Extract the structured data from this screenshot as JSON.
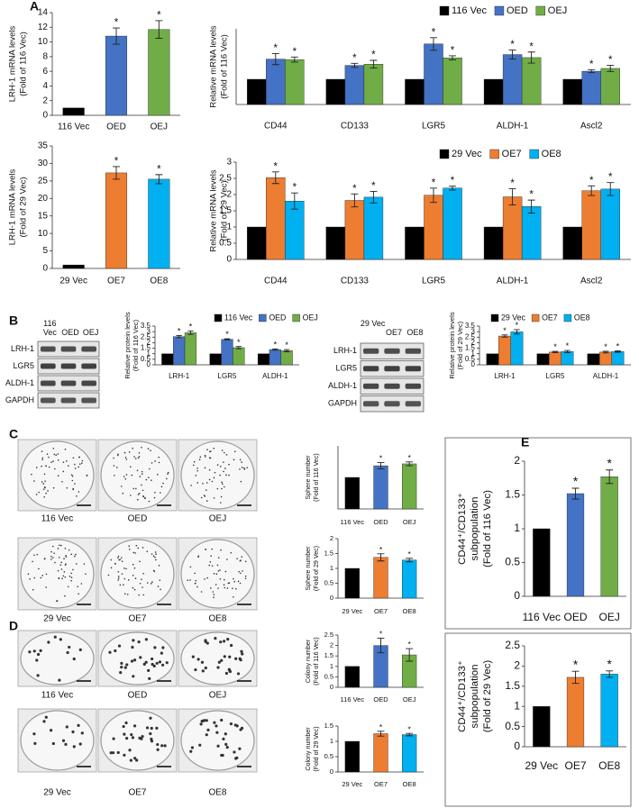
{
  "panels": [
    "A",
    "B",
    "C",
    "D",
    "E"
  ],
  "blots": [
    {
      "lanes": [
        "116 Vec",
        "OED",
        "OEJ"
      ],
      "proteins": [
        "LRH-1",
        "LGR5",
        "ALDH-1",
        "GAPDH"
      ]
    },
    {
      "lanes": [
        "29 Vec",
        "OE7",
        "OE8"
      ],
      "proteins": [
        "LRH-1",
        "LGR5",
        "ALDH-1",
        "GAPDH"
      ]
    }
  ],
  "images": {
    "C": [
      [
        "116 Vec",
        "OED",
        "OEJ"
      ],
      [
        "29 Vec",
        "OE7",
        "OE8"
      ]
    ],
    "D": [
      [
        "116 Vec",
        "OED",
        "OEJ"
      ],
      [
        "29 Vec",
        "OE7",
        "OE8"
      ]
    ]
  },
  "chart_data": [
    {
      "type": "bar",
      "ylabel": [
        "LRH-1 mRNA levels",
        "(Fold of 116 Vec)"
      ],
      "categories": [
        "116 Vec",
        "OED",
        "OEJ"
      ],
      "values": [
        1,
        10.8,
        11.7
      ],
      "errors": [
        null,
        1.1,
        1.2
      ],
      "value_marks": [
        null,
        "*",
        "*"
      ],
      "colors": [
        "#000000",
        "#4472c4",
        "#70ad47"
      ],
      "ylim": [
        0,
        14
      ],
      "yticks": [
        0,
        2,
        4,
        6,
        8,
        10,
        12,
        14
      ]
    },
    {
      "type": "bar",
      "ylabel": [
        "Relative mRNA levels",
        "(Fold of 116 Vec)"
      ],
      "categories": [
        "CD44",
        "CD133",
        "LGR5",
        "ALDH-1",
        "Ascl2"
      ],
      "legend": "top",
      "series": [
        {
          "name": "116 Vec",
          "color": "#000000",
          "values": [
            1,
            1,
            1,
            1,
            1
          ]
        },
        {
          "name": "OED",
          "color": "#4472c4",
          "values": [
            1.8,
            1.55,
            2.4,
            1.98,
            1.32
          ],
          "errors": [
            0.22,
            0.08,
            0.25,
            0.18,
            0.06
          ],
          "value_marks": [
            "*",
            "*",
            "*",
            "*",
            "*"
          ]
        },
        {
          "name": "OEJ",
          "color": "#70ad47",
          "values": [
            1.78,
            1.6,
            1.85,
            1.86,
            1.43
          ],
          "errors": [
            0.1,
            0.15,
            0.08,
            0.22,
            0.12
          ],
          "value_marks": [
            "*",
            "*",
            "*",
            "*",
            "*"
          ]
        }
      ],
      "ylim": [
        0,
        3
      ]
    },
    {
      "type": "bar",
      "ylabel": [
        "LRH-1 mRNA levels",
        "(Fold of 29 Vec)"
      ],
      "categories": [
        "29 Vec",
        "OE7",
        "OE8"
      ],
      "values": [
        1,
        27.3,
        25.5
      ],
      "errors": [
        null,
        1.8,
        1.3
      ],
      "value_marks": [
        null,
        "*",
        "*"
      ],
      "colors": [
        "#000000",
        "#ed7d31",
        "#00b0f0"
      ],
      "ylim": [
        0,
        35
      ],
      "yticks": [
        0,
        5,
        10,
        15,
        20,
        25,
        30,
        35
      ]
    },
    {
      "type": "bar",
      "ylabel": [
        "Relative mRNA levels",
        "(Fold of 29 Vec)"
      ],
      "categories": [
        "CD44",
        "CD133",
        "LGR5",
        "ALDH-1",
        "Ascl2"
      ],
      "legend": "top",
      "series": [
        {
          "name": "29 Vec",
          "color": "#000000",
          "values": [
            1,
            1,
            1,
            1,
            1
          ]
        },
        {
          "name": "OE7",
          "color": "#ed7d31",
          "values": [
            2.52,
            1.82,
            1.98,
            1.93,
            2.12
          ],
          "errors": [
            0.18,
            0.2,
            0.22,
            0.25,
            0.15
          ],
          "value_marks": [
            "*",
            "*",
            "*",
            "*",
            "*"
          ]
        },
        {
          "name": "OE8",
          "color": "#00b0f0",
          "values": [
            1.8,
            1.92,
            2.2,
            1.63,
            2.17
          ],
          "errors": [
            0.25,
            0.18,
            0.06,
            0.2,
            0.2
          ],
          "value_marks": [
            "*",
            "*",
            "*",
            "*",
            "*"
          ]
        }
      ],
      "ylim": [
        0,
        3
      ],
      "yticks": [
        0,
        0.5,
        1,
        1.5,
        2,
        2.5,
        3
      ]
    },
    {
      "type": "bar",
      "ylabel": [
        "Relative protein levels",
        "(Fold of 116 Vec)"
      ],
      "categories": [
        "LRH-1",
        "LGR5",
        "ALDH-1"
      ],
      "legend": "top",
      "series": [
        {
          "name": "116 Vec",
          "color": "#000000",
          "values": [
            1,
            1,
            1
          ]
        },
        {
          "name": "OED",
          "color": "#4472c4",
          "values": [
            2.55,
            2.3,
            1.38
          ],
          "errors": [
            0.1,
            0.05,
            0.06
          ],
          "value_marks": [
            "*",
            "*",
            "*"
          ]
        },
        {
          "name": "OEJ",
          "color": "#70ad47",
          "values": [
            2.9,
            1.55,
            1.28
          ],
          "errors": [
            0.15,
            0.1,
            0.1
          ],
          "value_marks": [
            "*",
            "*",
            "*"
          ]
        }
      ],
      "ylim": [
        0,
        3.5
      ],
      "yticks": [
        0,
        0.5,
        1,
        1.5,
        2,
        2.5,
        3,
        3.5
      ]
    },
    {
      "type": "bar",
      "ylabel": [
        "Relative protein levels",
        "(Fold of 29 Vec)"
      ],
      "categories": [
        "LRH-1",
        "LGR5",
        "ALDH-1"
      ],
      "legend": "top",
      "series": [
        {
          "name": "29 Vec",
          "color": "#000000",
          "values": [
            1,
            1,
            1
          ]
        },
        {
          "name": "OE7",
          "color": "#ed7d31",
          "values": [
            2.6,
            1.15,
            1.15
          ],
          "errors": [
            0.1,
            0.06,
            0.08
          ],
          "value_marks": [
            "*",
            "*",
            "*"
          ]
        },
        {
          "name": "OE8",
          "color": "#00b0f0",
          "values": [
            2.98,
            1.2,
            1.2
          ],
          "errors": [
            0.2,
            0.1,
            0.06
          ],
          "value_marks": [
            "*",
            "*",
            "*"
          ]
        }
      ],
      "ylim": [
        0,
        3.5
      ],
      "yticks": [
        0,
        0.5,
        1,
        1.5,
        2,
        2.5,
        3,
        3.5
      ]
    },
    {
      "type": "bar",
      "ylabel": [
        "Sphere number",
        "(Fold of 116 Vec)"
      ],
      "categories": [
        "116 Vec",
        "OED",
        "OEJ"
      ],
      "values": [
        1,
        1.37,
        1.43
      ],
      "errors": [
        null,
        0.1,
        0.06
      ],
      "value_marks": [
        null,
        "*",
        "*"
      ],
      "colors": [
        "#000000",
        "#4472c4",
        "#70ad47"
      ],
      "ylim": [
        0,
        2
      ]
    },
    {
      "type": "bar",
      "ylabel": [
        "Sphere number",
        "(Fold of 29 Vec)"
      ],
      "categories": [
        "29 Vec",
        "OE7",
        "OE8"
      ],
      "values": [
        1,
        1.37,
        1.28
      ],
      "errors": [
        null,
        0.12,
        0.06
      ],
      "value_marks": [
        null,
        "*",
        "*"
      ],
      "colors": [
        "#000000",
        "#ed7d31",
        "#00b0f0"
      ],
      "ylim": [
        0,
        2
      ],
      "yticks": [
        0,
        0.5,
        1,
        1.5,
        2
      ]
    },
    {
      "type": "bar",
      "ylabel": [
        "Colony number",
        "(Fold of 116 Vec)"
      ],
      "categories": [
        "116 Vec",
        "OED",
        "OEJ"
      ],
      "values": [
        1,
        2.0,
        1.55
      ],
      "errors": [
        null,
        0.35,
        0.3
      ],
      "value_marks": [
        null,
        "*",
        "*"
      ],
      "colors": [
        "#000000",
        "#4472c4",
        "#70ad47"
      ],
      "ylim": [
        0,
        2.5
      ],
      "yticks": [
        0,
        0.5,
        1,
        1.5,
        2,
        2.5
      ]
    },
    {
      "type": "bar",
      "ylabel": [
        "Colony number",
        "(Fold of 29 Vec)"
      ],
      "categories": [
        "29 Vec",
        "OE7",
        "OE8"
      ],
      "values": [
        1,
        1.25,
        1.22
      ],
      "errors": [
        null,
        0.08,
        0.04
      ],
      "value_marks": [
        null,
        "*",
        "*"
      ],
      "colors": [
        "#000000",
        "#ed7d31",
        "#00b0f0"
      ],
      "ylim": [
        0,
        1.5
      ],
      "yticks": [
        0,
        0.5,
        1,
        1.5
      ]
    },
    {
      "type": "bar",
      "ylabel": [
        "CD44⁺/CD133⁺",
        "subpopulation",
        "(Fold of 116 Vec)"
      ],
      "categories": [
        "116 Vec",
        "OED",
        "OEJ"
      ],
      "values": [
        1,
        1.52,
        1.77
      ],
      "errors": [
        null,
        0.08,
        0.1
      ],
      "value_marks": [
        null,
        "*",
        "*"
      ],
      "colors": [
        "#000000",
        "#4472c4",
        "#70ad47"
      ],
      "ylim": [
        0,
        2
      ],
      "yticks": [
        0,
        0.5,
        1,
        1.5,
        2
      ]
    },
    {
      "type": "bar",
      "ylabel": [
        "CD44⁺/CD133⁺",
        "subpopulation",
        "(Fold of 29 Vec)"
      ],
      "categories": [
        "29 Vec",
        "OE7",
        "OE8"
      ],
      "values": [
        1,
        1.72,
        1.8
      ],
      "errors": [
        null,
        0.15,
        0.08
      ],
      "value_marks": [
        null,
        "*",
        "*"
      ],
      "colors": [
        "#000000",
        "#ed7d31",
        "#00b0f0"
      ],
      "ylim": [
        0,
        2.5
      ],
      "yticks": [
        0,
        0.5,
        1,
        1.5,
        2,
        2.5
      ]
    }
  ]
}
